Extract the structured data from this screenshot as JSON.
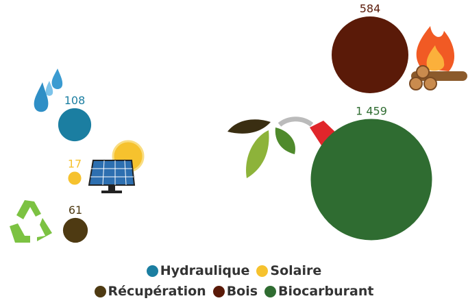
{
  "chart_data": {
    "type": "bubble",
    "categories": [
      "Hydraulique",
      "Solaire",
      "Récupération",
      "Bois",
      "Biocarburant"
    ],
    "values": [
      108,
      17,
      61,
      584,
      1459
    ],
    "value_labels": [
      "108",
      "17",
      "61",
      "584",
      "1 459"
    ],
    "colors": [
      "#1b7ea1",
      "#f6c22e",
      "#4e3a12",
      "#5a1a08",
      "#2f6c31"
    ]
  }
}
